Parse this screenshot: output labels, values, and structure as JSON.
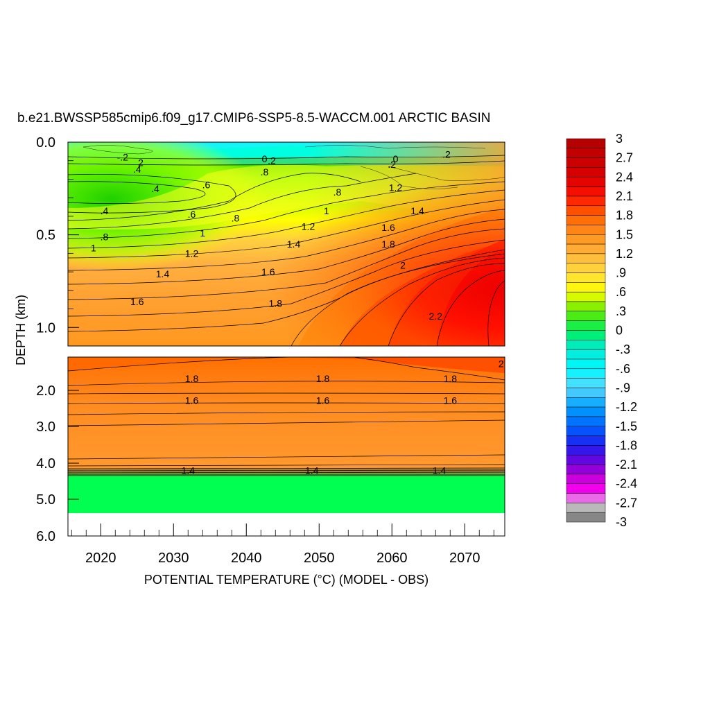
{
  "chart_data": {
    "type": "heatmap",
    "title": "b.e21.BWSSP585cmip6.f09_g17.CMIP6-SSP5-8.5-WACCM.001 ARCTIC BASIN",
    "xlabel": "POTENTIAL TEMPERATURE (°C) (MODEL - OBS)",
    "ylabel": "DEPTH (km)",
    "x_range": [
      2015.5,
      2075.5
    ],
    "x_ticks": [
      "2020",
      "2030",
      "2040",
      "2050",
      "2060",
      "2070"
    ],
    "panels": [
      {
        "name": "upper",
        "y_range": [
          0.0,
          1.1
        ],
        "y_ticks": [
          "0.0",
          "0.5",
          "1.0"
        ]
      },
      {
        "name": "lower",
        "y_range": [
          1.1,
          6.0
        ],
        "y_ticks": [
          "2.0",
          "3.0",
          "4.0",
          "5.0",
          "6.0"
        ]
      }
    ],
    "colorbar": {
      "min": -3.0,
      "max": 3.0,
      "step": 0.15,
      "labels": [
        "3",
        "2.7",
        "2.4",
        "2.1",
        "1.8",
        "1.5",
        "1.2",
        ".9",
        ".6",
        ".3",
        "0",
        "-.3",
        "-.6",
        "-.9",
        "-1.2",
        "-1.5",
        "-1.8",
        "-2.1",
        "-2.4",
        "-2.7",
        "-3"
      ]
    },
    "contour_labels": [
      {
        "text": "-.2",
        "year": 2023.0,
        "depth": 0.08
      },
      {
        "text": "2",
        "year": 2025.5,
        "depth": 0.11
      },
      {
        "text": ".4",
        "year": 2025.0,
        "depth": 0.145
      },
      {
        "text": "0",
        "year": 2042.5,
        "depth": 0.09
      },
      {
        "text": ".2",
        "year": 2043.5,
        "depth": 0.1
      },
      {
        "text": ".8",
        "year": 2042.5,
        "depth": 0.16
      },
      {
        "text": "0",
        "year": 2060.5,
        "depth": 0.09
      },
      {
        "text": ".2",
        "year": 2060.0,
        "depth": 0.12
      },
      {
        "text": ".2",
        "year": 2067.5,
        "depth": 0.065
      },
      {
        "text": ".4",
        "year": 2027.5,
        "depth": 0.25
      },
      {
        "text": ".6",
        "year": 2034.5,
        "depth": 0.23
      },
      {
        "text": ".8",
        "year": 2052.5,
        "depth": 0.27
      },
      {
        "text": "1.2",
        "year": 2060.5,
        "depth": 0.245
      },
      {
        "text": ".4",
        "year": 2020.5,
        "depth": 0.37
      },
      {
        "text": ".6",
        "year": 2032.5,
        "depth": 0.39
      },
      {
        "text": ".8",
        "year": 2038.5,
        "depth": 0.41
      },
      {
        "text": "1",
        "year": 2051.0,
        "depth": 0.37
      },
      {
        "text": "1.4",
        "year": 2063.5,
        "depth": 0.37
      },
      {
        "text": "1.2",
        "year": 2048.5,
        "depth": 0.455
      },
      {
        "text": "1.6",
        "year": 2059.5,
        "depth": 0.46
      },
      {
        "text": ".8",
        "year": 2020.5,
        "depth": 0.51
      },
      {
        "text": "1",
        "year": 2034.0,
        "depth": 0.49
      },
      {
        "text": "1.4",
        "year": 2046.5,
        "depth": 0.55
      },
      {
        "text": "1.8",
        "year": 2059.5,
        "depth": 0.55
      },
      {
        "text": "1",
        "year": 2019.0,
        "depth": 0.57
      },
      {
        "text": "1.2",
        "year": 2032.5,
        "depth": 0.6
      },
      {
        "text": "2",
        "year": 2061.5,
        "depth": 0.665
      },
      {
        "text": "1.4",
        "year": 2028.5,
        "depth": 0.71
      },
      {
        "text": "1.6",
        "year": 2043.0,
        "depth": 0.7
      },
      {
        "text": "1.6",
        "year": 2025.0,
        "depth": 0.86
      },
      {
        "text": "1.8",
        "year": 2044.0,
        "depth": 0.87
      },
      {
        "text": "2.2",
        "year": 2066.0,
        "depth": 0.94
      },
      {
        "text": "2",
        "year": 2075.0,
        "depth": 1.28
      },
      {
        "text": "1.8",
        "year": 2032.5,
        "depth": 1.68
      },
      {
        "text": "1.8",
        "year": 2050.5,
        "depth": 1.68
      },
      {
        "text": "1.8",
        "year": 2068.0,
        "depth": 1.68
      },
      {
        "text": "1.6",
        "year": 2032.5,
        "depth": 2.28
      },
      {
        "text": "1.6",
        "year": 2050.5,
        "depth": 2.28
      },
      {
        "text": "1.6",
        "year": 2068.0,
        "depth": 2.28
      },
      {
        "text": "1.4",
        "year": 2032.0,
        "depth": 4.2
      },
      {
        "text": "1.4",
        "year": 2049.0,
        "depth": 4.2
      },
      {
        "text": "1.4",
        "year": 2066.5,
        "depth": 4.2
      }
    ]
  }
}
